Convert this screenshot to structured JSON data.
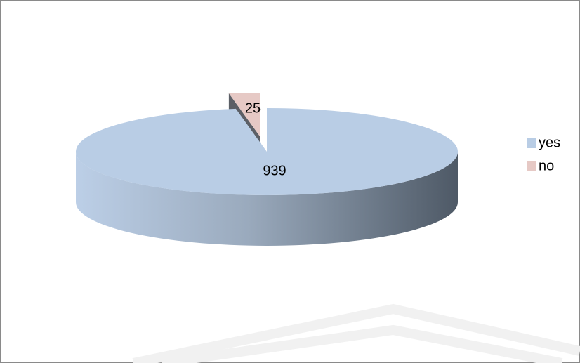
{
  "chart_data": {
    "type": "pie",
    "categories": [
      "yes",
      "no"
    ],
    "values": [
      939,
      25
    ],
    "colors": [
      "#b9cde5",
      "#e6c9c5"
    ],
    "legend": "right"
  }
}
